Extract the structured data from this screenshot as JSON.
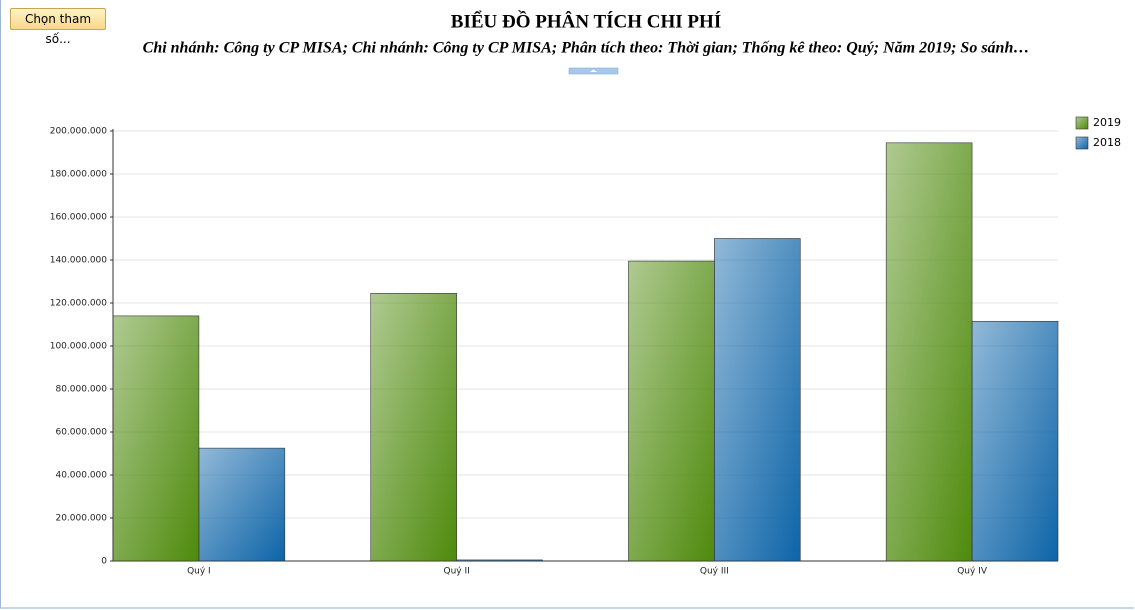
{
  "button": "Chọn tham số...",
  "chart_data": {
    "type": "bar",
    "title": "BIỂU ĐỒ PHÂN TÍCH CHI PHÍ",
    "subtitle": "Chi nhánh: Công ty CP MISA; Chi nhánh: Công ty CP MISA; Phân tích theo: Thời gian; Thống kê theo: Quý; Năm 2019; So sánh…",
    "categories": [
      "Quý I",
      "Quý II",
      "Quý III",
      "Quý IV"
    ],
    "series": [
      {
        "name": "2019",
        "color": "#4e8a0c",
        "values": [
          114000000,
          124500000,
          139500000,
          194500000
        ]
      },
      {
        "name": "2018",
        "color": "#0d64a8",
        "values": [
          52500000,
          500000,
          150000000,
          111500000
        ]
      }
    ],
    "ylim": [
      0,
      200000000
    ],
    "yticks": [
      0,
      {
        "value": 20000000,
        "label": "20.000.000"
      },
      {
        "value": 40000000,
        "label": "40.000.000"
      },
      {
        "value": 60000000,
        "label": "60.000.000"
      },
      {
        "value": 80000000,
        "label": "80.000.000"
      },
      {
        "value": 100000000,
        "label": "100.000.000"
      },
      {
        "value": 120000000,
        "label": "120.000.000"
      },
      {
        "value": 140000000,
        "label": "140.000.000"
      },
      {
        "value": 160000000,
        "label": "160.000.000"
      },
      {
        "value": 180000000,
        "label": "180.000.000"
      },
      {
        "value": 200000000,
        "label": "200.000.000"
      }
    ],
    "grid": true,
    "legend": "top-right"
  }
}
